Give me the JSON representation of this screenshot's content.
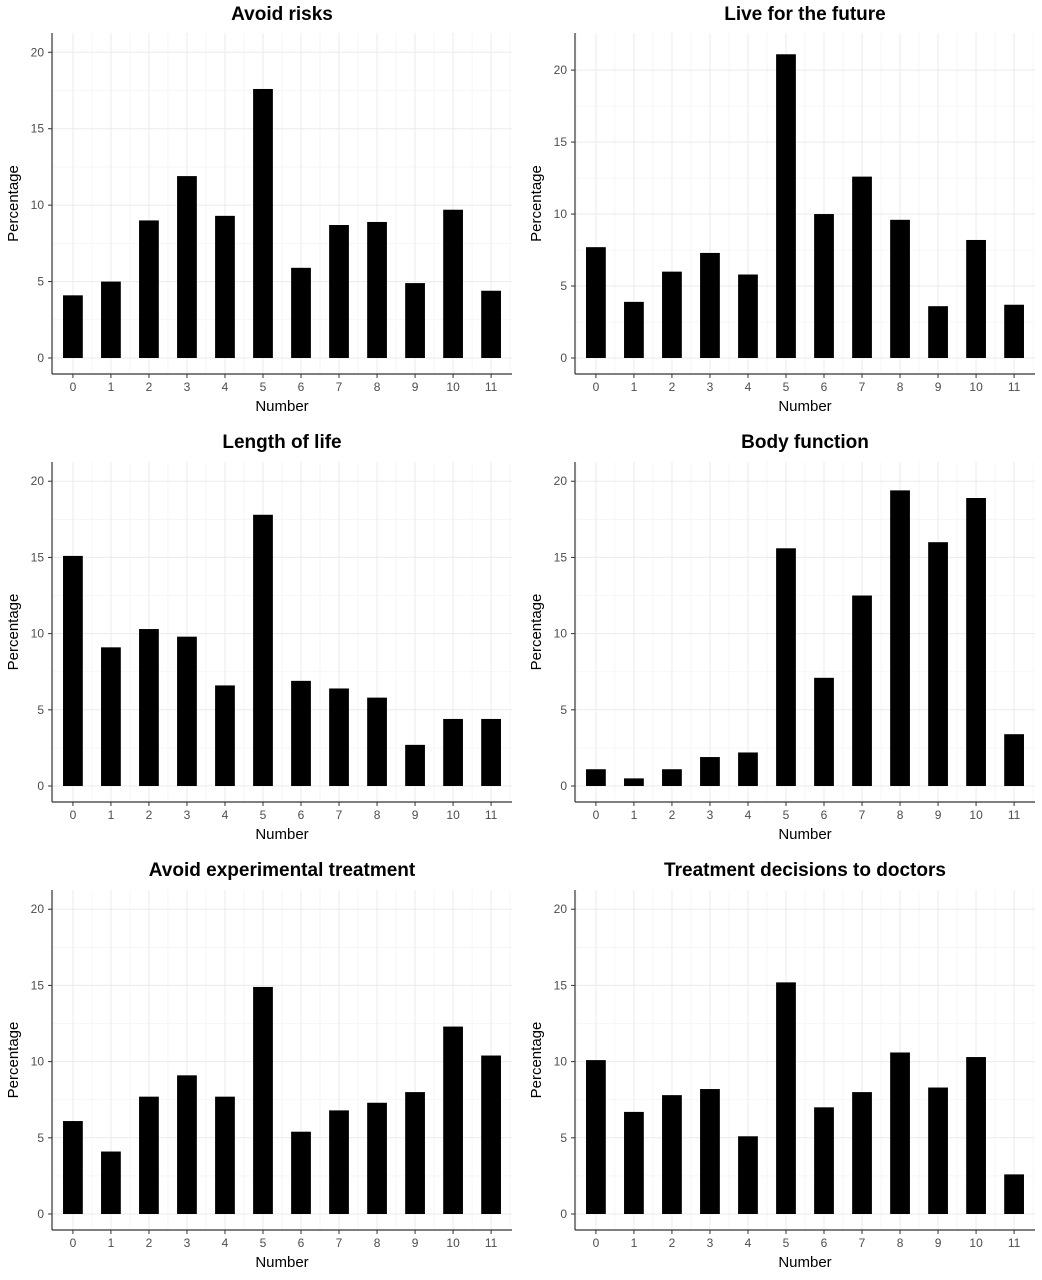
{
  "colors": {
    "bar": "#000000",
    "grid": "#ebebeb",
    "axis": "#333333",
    "background": "#ffffff"
  },
  "chart_data": [
    {
      "type": "bar",
      "title": "Avoid risks",
      "xlabel": "Number",
      "ylabel": "Percentage",
      "categories": [
        "0",
        "1",
        "2",
        "3",
        "4",
        "5",
        "6",
        "7",
        "8",
        "9",
        "10",
        "11"
      ],
      "values": [
        4.1,
        5.0,
        9.0,
        11.9,
        9.3,
        17.6,
        5.9,
        8.7,
        8.9,
        4.9,
        9.7,
        4.4
      ],
      "yticks": [
        "0",
        "5",
        "10",
        "15",
        "20"
      ],
      "ylim": [
        0,
        21
      ],
      "grid": true
    },
    {
      "type": "bar",
      "title": "Live for the future",
      "xlabel": "Number",
      "ylabel": "Percentage",
      "categories": [
        "0",
        "1",
        "2",
        "3",
        "4",
        "5",
        "6",
        "7",
        "8",
        "9",
        "10",
        "11"
      ],
      "values": [
        7.7,
        3.9,
        6.0,
        7.3,
        5.8,
        21.1,
        10.0,
        12.6,
        9.6,
        3.6,
        8.2,
        3.7
      ],
      "yticks": [
        "0",
        "5",
        "10",
        "15",
        "20"
      ],
      "ylim": [
        0,
        22.3
      ],
      "grid": true
    },
    {
      "type": "bar",
      "title": "Length of life",
      "xlabel": "Number",
      "ylabel": "Percentage",
      "categories": [
        "0",
        "1",
        "2",
        "3",
        "4",
        "5",
        "6",
        "7",
        "8",
        "9",
        "10",
        "11"
      ],
      "values": [
        15.1,
        9.1,
        10.3,
        9.8,
        6.6,
        17.8,
        6.9,
        6.4,
        5.8,
        2.7,
        4.4,
        4.4
      ],
      "yticks": [
        "0",
        "5",
        "10",
        "15",
        "20"
      ],
      "ylim": [
        0,
        21
      ],
      "grid": true
    },
    {
      "type": "bar",
      "title": "Body function",
      "xlabel": "Number",
      "ylabel": "Percentage",
      "categories": [
        "0",
        "1",
        "2",
        "3",
        "4",
        "5",
        "6",
        "7",
        "8",
        "9",
        "10",
        "11"
      ],
      "values": [
        1.1,
        0.5,
        1.1,
        1.9,
        2.2,
        15.6,
        7.1,
        12.5,
        19.4,
        16.0,
        18.9,
        3.4
      ],
      "yticks": [
        "0",
        "5",
        "10",
        "15",
        "20"
      ],
      "ylim": [
        0,
        21
      ],
      "grid": true
    },
    {
      "type": "bar",
      "title": "Avoid experimental treatment",
      "xlabel": "Number",
      "ylabel": "Percentage",
      "categories": [
        "0",
        "1",
        "2",
        "3",
        "4",
        "5",
        "6",
        "7",
        "8",
        "9",
        "10",
        "11"
      ],
      "values": [
        6.1,
        4.1,
        7.7,
        9.1,
        7.7,
        14.9,
        5.4,
        6.8,
        7.3,
        8.0,
        12.3,
        10.4
      ],
      "yticks": [
        "0",
        "5",
        "10",
        "15",
        "20"
      ],
      "ylim": [
        0,
        21
      ],
      "grid": true
    },
    {
      "type": "bar",
      "title": "Treatment decisions to doctors",
      "xlabel": "Number",
      "ylabel": "Percentage",
      "categories": [
        "0",
        "1",
        "2",
        "3",
        "4",
        "5",
        "6",
        "7",
        "8",
        "9",
        "10",
        "11"
      ],
      "values": [
        10.1,
        6.7,
        7.8,
        8.2,
        5.1,
        15.2,
        7.0,
        8.0,
        10.6,
        8.3,
        10.3,
        2.6
      ],
      "yticks": [
        "0",
        "5",
        "10",
        "15",
        "20"
      ],
      "ylim": [
        0,
        21
      ],
      "grid": true
    }
  ]
}
